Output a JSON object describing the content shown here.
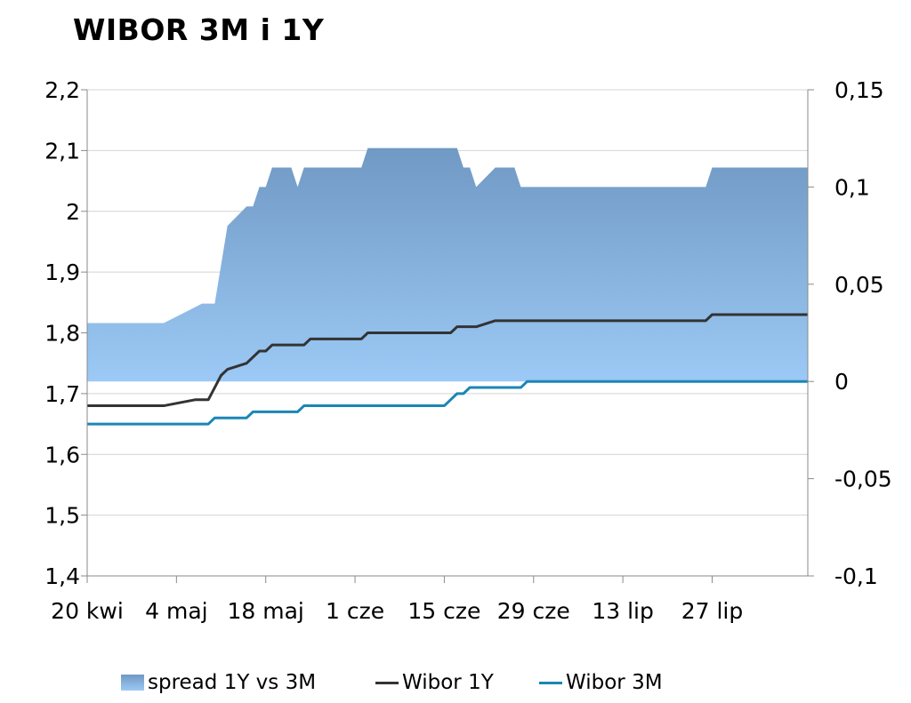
{
  "chart_data": {
    "type": "line+area",
    "title": "WIBOR 3M i 1Y",
    "x_ticks": [
      "20 kwi",
      "4 maj",
      "18 maj",
      "1 cze",
      "15 cze",
      "29 cze",
      "13 lip",
      "27 lip"
    ],
    "y_left": {
      "ylim": [
        1.4,
        2.2
      ],
      "ticks": [
        "1,4",
        "1,5",
        "1,6",
        "1,7",
        "1,8",
        "1,9",
        "2",
        "2,1",
        "2,2"
      ]
    },
    "y_right": {
      "ylim": [
        -0.1,
        0.15
      ],
      "ticks": [
        "-0,1",
        "-0,05",
        "0",
        "0,05",
        "0,1",
        "0,15"
      ]
    },
    "grid": true,
    "legend_position": "bottom",
    "series": [
      {
        "name": "spread 1Y vs 3M",
        "type": "area",
        "axis": "right",
        "color_top": "#7099c4",
        "color_bottom": "#9cc9f5",
        "points": [
          [
            0,
            0.03
          ],
          [
            12,
            0.03
          ],
          [
            15,
            0.035
          ],
          [
            18,
            0.04
          ],
          [
            20,
            0.04
          ],
          [
            22,
            0.08
          ],
          [
            25,
            0.09
          ],
          [
            26,
            0.09
          ],
          [
            27,
            0.1
          ],
          [
            28,
            0.1
          ],
          [
            29,
            0.11
          ],
          [
            32,
            0.11
          ],
          [
            33,
            0.1
          ],
          [
            34,
            0.11
          ],
          [
            43,
            0.11
          ],
          [
            44,
            0.12
          ],
          [
            58,
            0.12
          ],
          [
            59,
            0.11
          ],
          [
            60,
            0.11
          ],
          [
            61,
            0.1
          ],
          [
            64,
            0.11
          ],
          [
            67,
            0.11
          ],
          [
            68,
            0.1
          ],
          [
            97,
            0.1
          ],
          [
            98,
            0.11
          ],
          [
            113,
            0.11
          ]
        ]
      },
      {
        "name": "Wibor 1Y",
        "type": "line",
        "axis": "left",
        "color": "#333333",
        "points": [
          [
            0,
            1.68
          ],
          [
            12,
            1.68
          ],
          [
            17,
            1.69
          ],
          [
            19,
            1.69
          ],
          [
            20,
            1.71
          ],
          [
            21,
            1.73
          ],
          [
            22,
            1.74
          ],
          [
            25,
            1.75
          ],
          [
            27,
            1.77
          ],
          [
            28,
            1.77
          ],
          [
            29,
            1.78
          ],
          [
            34,
            1.78
          ],
          [
            35,
            1.79
          ],
          [
            43,
            1.79
          ],
          [
            44,
            1.8
          ],
          [
            57,
            1.8
          ],
          [
            58,
            1.81
          ],
          [
            61,
            1.81
          ],
          [
            64,
            1.82
          ],
          [
            97,
            1.82
          ],
          [
            98,
            1.83
          ],
          [
            113,
            1.83
          ]
        ]
      },
      {
        "name": "Wibor 3M",
        "type": "line",
        "axis": "left",
        "color": "#1b86b5",
        "points": [
          [
            0,
            1.65
          ],
          [
            19,
            1.65
          ],
          [
            20,
            1.66
          ],
          [
            25,
            1.66
          ],
          [
            26,
            1.67
          ],
          [
            33,
            1.67
          ],
          [
            34,
            1.68
          ],
          [
            56,
            1.68
          ],
          [
            58,
            1.7
          ],
          [
            59,
            1.7
          ],
          [
            60,
            1.71
          ],
          [
            68,
            1.71
          ],
          [
            69,
            1.72
          ],
          [
            113,
            1.72
          ]
        ]
      }
    ]
  },
  "legend": {
    "spread_label": "spread 1Y vs 3M",
    "wibor1y_label": "Wibor 1Y",
    "wibor3m_label": "Wibor 3M"
  }
}
